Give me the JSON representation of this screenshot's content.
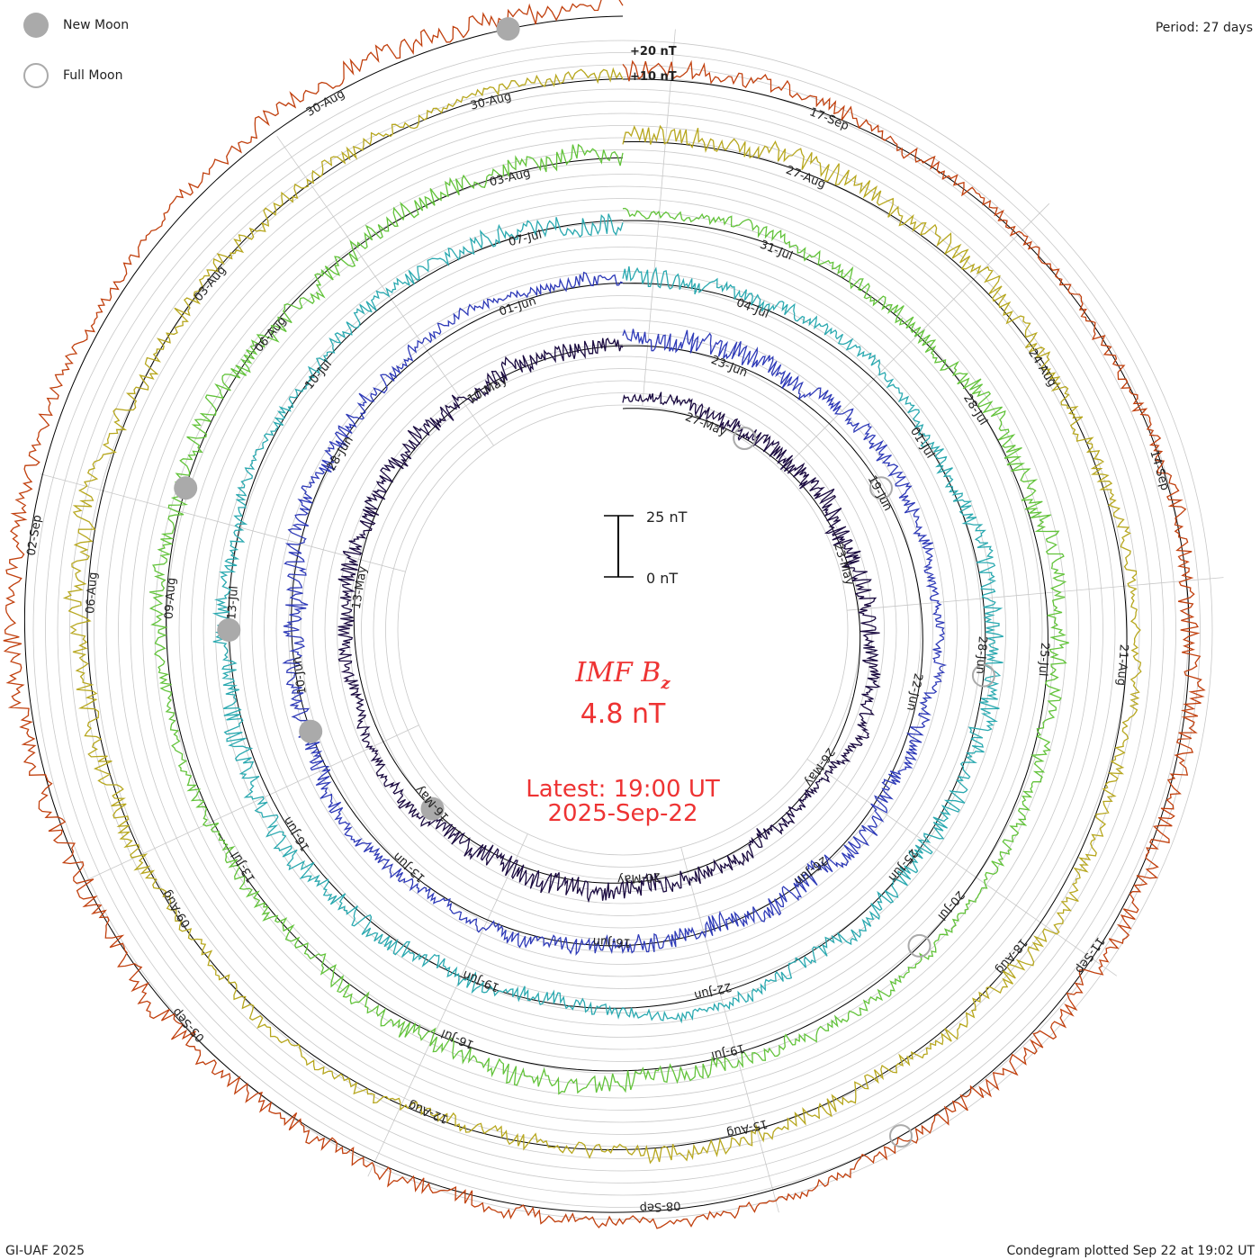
{
  "header": {
    "period": "Period: 27 days"
  },
  "legend": {
    "new_moon": "New Moon",
    "full_moon": "Full Moon"
  },
  "footer": {
    "left": "GI-UAF 2025",
    "right": "Condegram plotted Sep 22 at 19:02 UT"
  },
  "colors": {
    "grid": "#c8c8c8",
    "baseline": "#000000",
    "title": "#ee3333",
    "moon": "#aaaaaa"
  },
  "chart_data": {
    "type": "condegram",
    "title": "IMF B",
    "title_subscript": "z",
    "value": "4.8 nT",
    "latest_label": "Latest: 19:00 UT",
    "latest_date": "2025-Sep-22",
    "scale_bar": {
      "top": "25 nT",
      "bottom": "0 nT"
    },
    "outer_scale": [
      "+20 nT",
      "+10 nT"
    ],
    "period_days": 27,
    "rotations": [
      {
        "color": "#1a0a40",
        "mean": 0
      },
      {
        "color": "#2e3ab8",
        "mean": 0
      },
      {
        "color": "#2aa9b0",
        "mean": 0
      },
      {
        "color": "#62c33a",
        "mean": 0
      },
      {
        "color": "#b7a71e",
        "mean": 0
      },
      {
        "color": "#c1400e",
        "mean": 0
      }
    ],
    "date_labels": [
      [
        "27-May",
        "23-May",
        "26-May",
        "20-May",
        "16-May",
        "13-May",
        "10-May"
      ],
      [
        "23-Jun",
        "19-Jun",
        "22-Jun",
        "26-Jun",
        "16-Jun",
        "13-Jun",
        "10-Jun",
        "28-Jun",
        "01-Jun"
      ],
      [
        "04-Jul",
        "01-Jul",
        "28-Jun",
        "25-Jun",
        "22-Jun",
        "19-Jun",
        "16-Jun",
        "13-Jul",
        "10-Jul",
        "07-Jul"
      ],
      [
        "31-Jul",
        "28-Jul",
        "25-Jul",
        "20-Jul",
        "19-Jul",
        "16-Jul",
        "13-Jul",
        "09-Aug",
        "06-Aug",
        "03-Aug"
      ],
      [
        "27-Aug",
        "24-Aug",
        "21-Aug",
        "18-Aug",
        "15-Aug",
        "12-Aug",
        "09-Aug",
        "06-Aug",
        "03-Aug",
        "30-Aug"
      ],
      [
        "17-Sep",
        "14-Sep",
        "11-Sep",
        "08-Sep",
        "05-Sep",
        "02-Sep",
        "30-Aug"
      ]
    ],
    "new_moons": [
      {
        "ring": 0,
        "date": "27-May"
      },
      {
        "ring": 1,
        "date": "25-Jun"
      },
      {
        "ring": 2,
        "date": "24-Jul"
      },
      {
        "ring": 3,
        "date": "23-Aug"
      },
      {
        "ring": 5,
        "date": "21-Sep"
      }
    ],
    "full_moons": [
      {
        "ring": 0,
        "date": "12-May"
      },
      {
        "ring": 1,
        "date": "11-Jun"
      },
      {
        "ring": 2,
        "date": "10-Jul"
      },
      {
        "ring": 3,
        "date": "09-Aug"
      },
      {
        "ring": 5,
        "date": "07-Sep"
      }
    ]
  }
}
